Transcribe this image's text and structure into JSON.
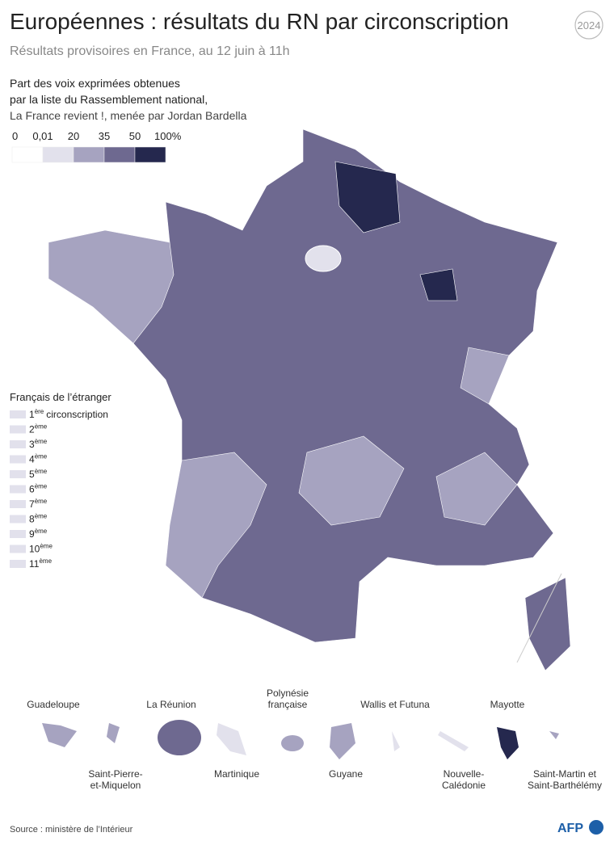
{
  "header": {
    "title": "Européennes : résultats du RN par circonscription",
    "subtitle": "Résultats provisoires en France, au 12 juin à 11h",
    "badge": "2024"
  },
  "legend": {
    "lines": [
      "Part des voix exprimées obtenues",
      "par la liste du Rassemblement national,",
      "La France revient !, menée par Jordan Bardella"
    ],
    "labels": [
      "0",
      "0,01",
      "20",
      "35",
      "50",
      "100%"
    ],
    "colors": [
      "#ffffff",
      "#e2e1ec",
      "#a6a3c0",
      "#6e6990",
      "#25284e"
    ]
  },
  "abroad": {
    "title": "Français de l’étranger",
    "items": [
      {
        "n": "1",
        "sup": "ère",
        "label": "circonscription"
      },
      {
        "n": "2",
        "sup": "ème"
      },
      {
        "n": "3",
        "sup": "ème"
      },
      {
        "n": "4",
        "sup": "ème"
      },
      {
        "n": "5",
        "sup": "ème"
      },
      {
        "n": "6",
        "sup": "ème"
      },
      {
        "n": "7",
        "sup": "ème"
      },
      {
        "n": "8",
        "sup": "ème"
      },
      {
        "n": "9",
        "sup": "ème"
      },
      {
        "n": "10",
        "sup": "ème"
      },
      {
        "n": "11",
        "sup": "ème"
      }
    ]
  },
  "territories": {
    "guadeloupe": "Guadeloupe",
    "reunion": "La Réunion",
    "polynesie": [
      "Polynésie",
      "française"
    ],
    "wallis": "Wallis et Futuna",
    "mayotte": "Mayotte",
    "spm": [
      "Saint-Pierre-",
      "et-Miquelon"
    ],
    "martinique": "Martinique",
    "guyane": "Guyane",
    "nc": [
      "Nouvelle-",
      "Calédonie"
    ],
    "smsb": [
      "Saint-Martin et",
      "Saint-Barthélémy"
    ]
  },
  "footer": {
    "source": "Source : ministère de l’Intérieur",
    "logo": "AFP"
  }
}
